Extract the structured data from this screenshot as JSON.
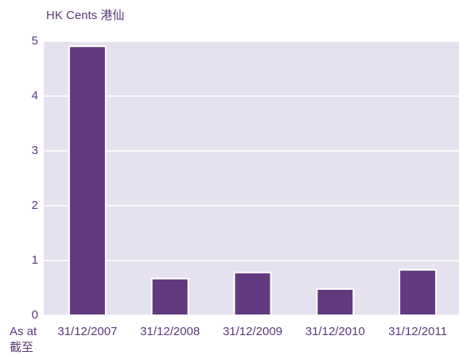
{
  "chart_data": {
    "type": "bar",
    "y_axis_label": "HK Cents 港仙",
    "x_axis_label": [
      "As at",
      "截至"
    ],
    "categories": [
      "31/12/2007",
      "31/12/2008",
      "31/12/2009",
      "31/12/2010",
      "31/12/2011"
    ],
    "values": [
      4.91,
      0.67,
      0.78,
      0.48,
      0.83
    ],
    "color": "#633a80",
    "ylim": [
      0,
      5
    ],
    "yticks": [
      0,
      1,
      2,
      3,
      4,
      5
    ],
    "grid": true
  }
}
